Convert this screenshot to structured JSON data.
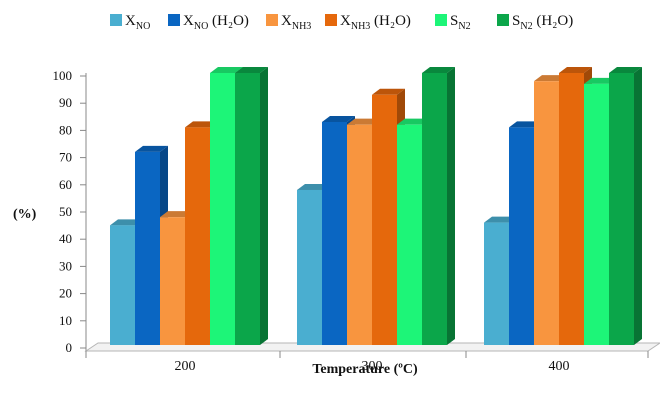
{
  "chart_data": {
    "type": "bar",
    "title": "",
    "xlabel": "Temperature (ºC)",
    "ylabel": "(%)",
    "ylim": [
      0,
      100
    ],
    "yticks": [
      0,
      10,
      20,
      30,
      40,
      50,
      60,
      70,
      80,
      90,
      100
    ],
    "categories": [
      "200",
      "300",
      "400"
    ],
    "legend_position": "top",
    "grid": false,
    "series": [
      {
        "name": "X_NO",
        "label_main": "X",
        "label_sub": "NO",
        "label_suffix": "",
        "color": "#4aaed0",
        "values": [
          44,
          57,
          45
        ]
      },
      {
        "name": "X_NO (H2O)",
        "label_main": "X",
        "label_sub": "NO",
        "label_suffix": " (H₂O)",
        "color": "#0a66c2",
        "values": [
          71,
          82,
          80
        ]
      },
      {
        "name": "X_NH3",
        "label_main": "X",
        "label_sub": "NH3",
        "label_suffix": "",
        "color": "#f8953f",
        "values": [
          47,
          81,
          97
        ]
      },
      {
        "name": "X_NH3 (H2O)",
        "label_main": "X",
        "label_sub": "NH3",
        "label_suffix": " (H₂O)",
        "color": "#e5680c",
        "values": [
          80,
          92,
          100
        ]
      },
      {
        "name": "S_N2",
        "label_main": "S",
        "label_sub": "N2",
        "label_suffix": "",
        "color": "#1df578",
        "values": [
          100,
          81,
          96
        ]
      },
      {
        "name": "S_N2 (H2O)",
        "label_main": "S",
        "label_sub": "N2",
        "label_suffix": " (H₂O)",
        "color": "#0ba64a",
        "values": [
          100,
          100,
          100
        ]
      }
    ]
  }
}
